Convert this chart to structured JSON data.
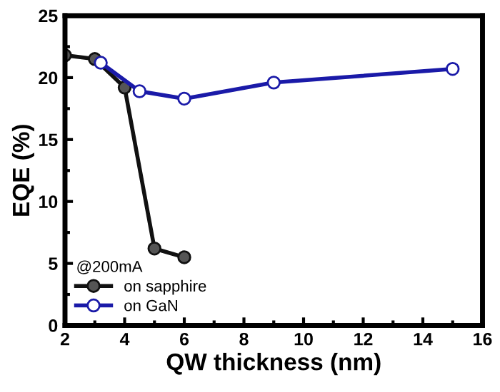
{
  "chart_data": {
    "type": "line",
    "xlabel": "QW thickness (nm)",
    "ylabel": "EQE (%)",
    "legend_title": "@200mA",
    "series": [
      {
        "name": "on sapphire",
        "color": "#111111",
        "x": [
          2,
          3,
          4,
          5,
          6
        ],
        "values": [
          21.8,
          21.5,
          19.2,
          6.2,
          5.5
        ]
      },
      {
        "name": "on GaN",
        "color": "#1a1aa8",
        "x": [
          3.2,
          4.5,
          6,
          9,
          15
        ],
        "values": [
          21.2,
          18.9,
          18.3,
          19.6,
          20.7
        ]
      }
    ],
    "xlim": [
      2,
      16
    ],
    "ylim": [
      0,
      25
    ],
    "xticks": [
      2,
      4,
      6,
      8,
      10,
      12,
      14,
      16
    ],
    "yticks": [
      0,
      5,
      10,
      15,
      20,
      25
    ],
    "marker": "circle",
    "line_style": "solid",
    "grid": false,
    "legend": "bottom left"
  }
}
